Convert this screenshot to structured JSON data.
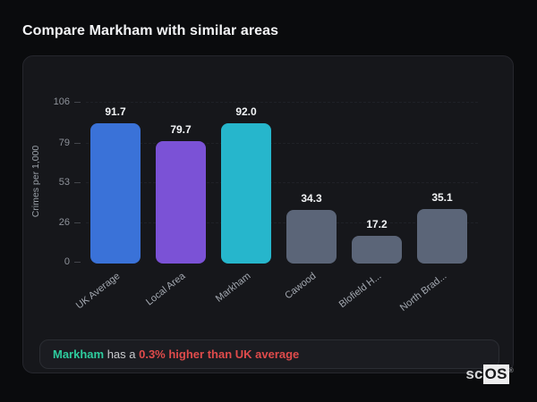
{
  "page": {
    "title": "Compare Markham with similar areas"
  },
  "chart_data": {
    "type": "bar",
    "categories": [
      "UK Average",
      "Local Area",
      "Markham",
      "Cawood",
      "Blofield H...",
      "North Brad..."
    ],
    "values": [
      91.7,
      79.7,
      92.0,
      34.3,
      17.2,
      35.1
    ],
    "value_labels": [
      "91.7",
      "79.7",
      "92.0",
      "34.3",
      "17.2",
      "35.1"
    ],
    "bar_colors": [
      "#3a72d8",
      "#7b52d6",
      "#26b6cc",
      "#5b6578",
      "#5b6578",
      "#5b6578"
    ],
    "title": "",
    "xlabel": "",
    "ylabel": "Crimes per 1,000",
    "ylim": [
      0,
      106
    ],
    "yticks": [
      0,
      26,
      53,
      79,
      106
    ],
    "grid": "horizontal-dashed",
    "legend": "none"
  },
  "note": {
    "area": "Markham",
    "connector": " has a ",
    "highlight": "0.3% higher than UK average",
    "area_color": "#2ecc9e",
    "highlight_color": "#e04b4b"
  },
  "logo": {
    "prefix": "sc",
    "suffix": "OS",
    "registered": "®"
  }
}
